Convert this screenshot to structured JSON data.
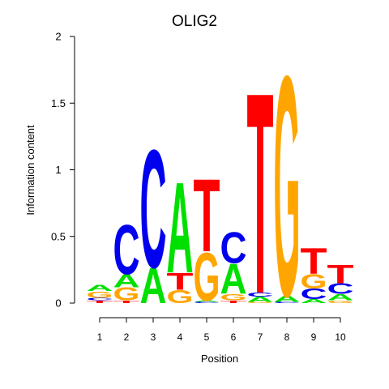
{
  "chart_data": {
    "type": "sequence-logo",
    "title": "OLIG2",
    "xlabel": "Position",
    "ylabel": "Information content",
    "ylim": [
      0,
      2
    ],
    "yticks": [
      "0",
      "0.5",
      "1",
      "1.5",
      "2"
    ],
    "positions": [
      "1",
      "2",
      "3",
      "4",
      "5",
      "6",
      "7",
      "8",
      "9",
      "10"
    ],
    "colors": {
      "A": "#00e000",
      "C": "#0000ee",
      "G": "#ffa500",
      "T": "#ff0000"
    },
    "columns": [
      [
        {
          "base": "T",
          "height": 0.02
        },
        {
          "base": "C",
          "height": 0.02
        },
        {
          "base": "G",
          "height": 0.05
        },
        {
          "base": "A",
          "height": 0.05
        }
      ],
      [
        {
          "base": "T",
          "height": 0.02
        },
        {
          "base": "G",
          "height": 0.1
        },
        {
          "base": "A",
          "height": 0.1
        },
        {
          "base": "C",
          "height": 0.38
        }
      ],
      [
        {
          "base": "A",
          "height": 0.27
        },
        {
          "base": "C",
          "height": 0.91
        }
      ],
      [
        {
          "base": "G",
          "height": 0.1
        },
        {
          "base": "T",
          "height": 0.13
        },
        {
          "base": "A",
          "height": 0.7
        }
      ],
      [
        {
          "base": "C",
          "height": 0.01
        },
        {
          "base": "A",
          "height": 0.01
        },
        {
          "base": "G",
          "height": 0.37
        },
        {
          "base": "T",
          "height": 0.56
        }
      ],
      [
        {
          "base": "T",
          "height": 0.02
        },
        {
          "base": "G",
          "height": 0.05
        },
        {
          "base": "A",
          "height": 0.23
        },
        {
          "base": "C",
          "height": 0.24
        }
      ],
      [
        {
          "base": "G",
          "height": 0.01
        },
        {
          "base": "A",
          "height": 0.04
        },
        {
          "base": "C",
          "height": 0.03
        },
        {
          "base": "T",
          "height": 1.55
        }
      ],
      [
        {
          "base": "C",
          "height": 0.01
        },
        {
          "base": "A",
          "height": 0.05
        },
        {
          "base": "G",
          "height": 1.7
        }
      ],
      [
        {
          "base": "A",
          "height": 0.03
        },
        {
          "base": "C",
          "height": 0.08
        },
        {
          "base": "G",
          "height": 0.11
        },
        {
          "base": "T",
          "height": 0.2
        }
      ],
      [
        {
          "base": "G",
          "height": 0.02
        },
        {
          "base": "A",
          "height": 0.05
        },
        {
          "base": "C",
          "height": 0.08
        },
        {
          "base": "T",
          "height": 0.14
        }
      ]
    ]
  }
}
